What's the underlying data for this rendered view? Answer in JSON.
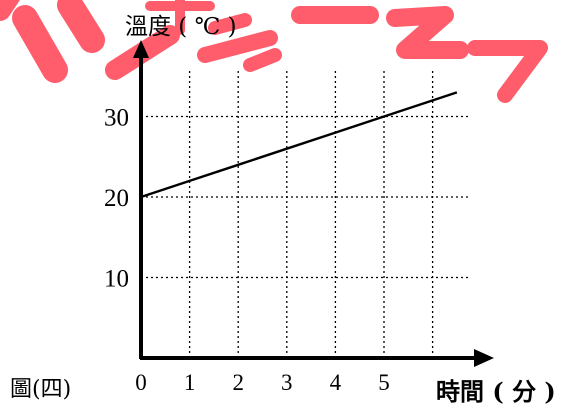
{
  "chart_data": {
    "type": "line",
    "figure_label": "圖(四)",
    "ylabel": "溫度 ( ℃ )",
    "xlabel": "時間 ( 分 )",
    "x_ticks": [
      "0",
      "1",
      "2",
      "3",
      "4",
      "5"
    ],
    "y_ticks": [
      "10",
      "20",
      "30"
    ],
    "xlim": [
      0,
      6.5
    ],
    "ylim": [
      0,
      36
    ],
    "grid": true,
    "series": [
      {
        "x": [
          0,
          1,
          2,
          3,
          4,
          5,
          6.5
        ],
        "y": [
          20,
          22,
          24,
          26,
          28,
          30,
          33
        ]
      }
    ]
  },
  "watermark": {
    "text": "樣參考",
    "color": "#ff5c6c"
  }
}
